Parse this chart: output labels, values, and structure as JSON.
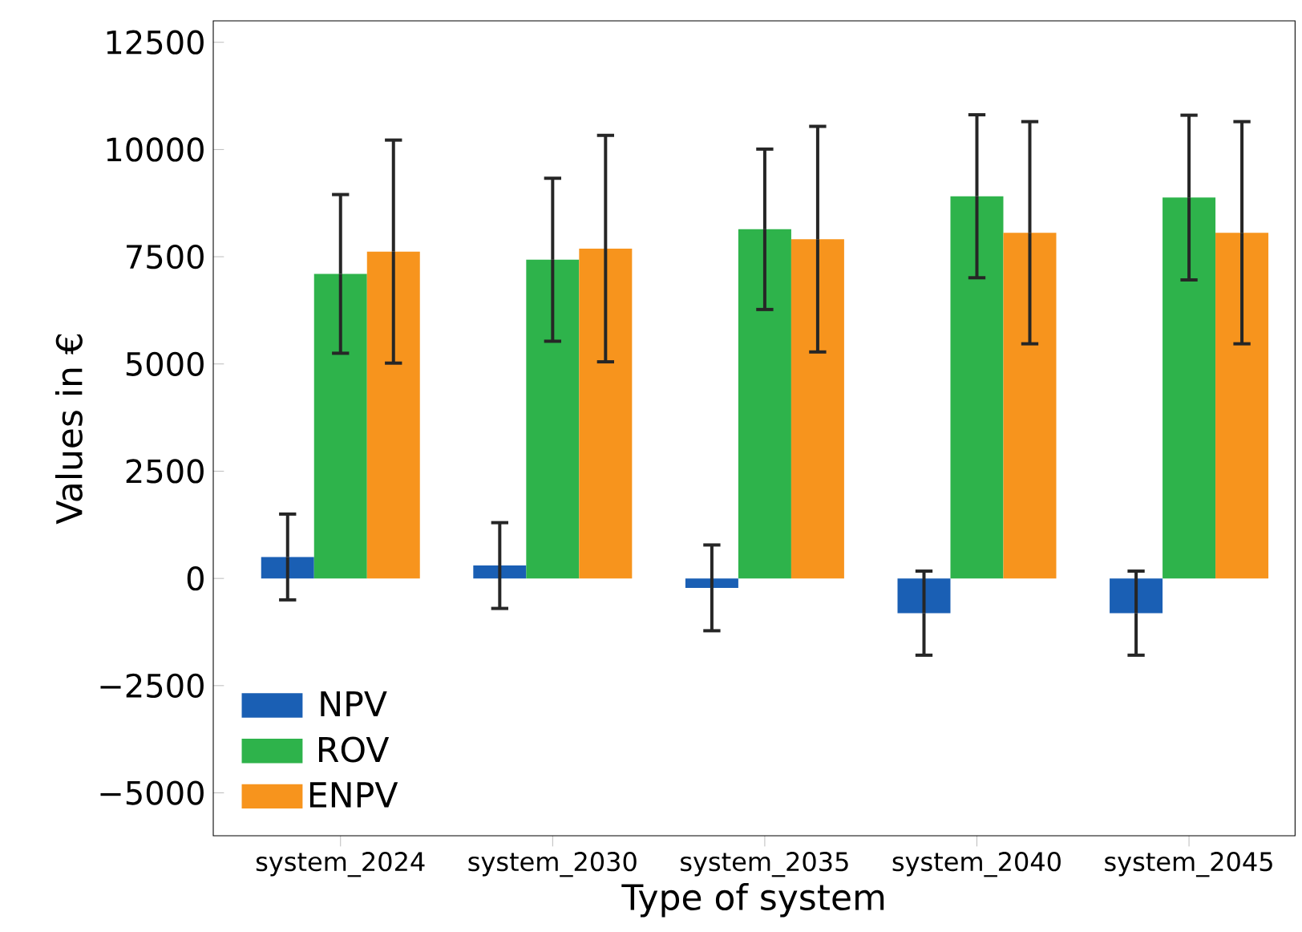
{
  "chart_data": {
    "type": "bar",
    "xlabel": "Type of system",
    "ylabel": "Values in €",
    "categories": [
      "system_2024",
      "system_2030",
      "system_2035",
      "system_2040",
      "system_2045"
    ],
    "series": [
      {
        "name": "NPV",
        "color": "#1a5fb4",
        "values": [
          500,
          300,
          -220,
          -810,
          -810
        ],
        "errors": [
          1000,
          1000,
          1000,
          980,
          980
        ]
      },
      {
        "name": "ROV",
        "color": "#2eb34b",
        "values": [
          7100,
          7430,
          8140,
          8910,
          8880
        ],
        "errors": [
          1850,
          1900,
          1870,
          1900,
          1920
        ]
      },
      {
        "name": "ENPV",
        "color": "#f7941d",
        "values": [
          7620,
          7690,
          7910,
          8060,
          8060
        ],
        "errors": [
          2600,
          2640,
          2630,
          2590,
          2590
        ]
      }
    ],
    "ylim": [
      -6000,
      13000
    ],
    "yticks": [
      {
        "value": -5000,
        "label": "−5000"
      },
      {
        "value": -2500,
        "label": "−2500"
      },
      0,
      2500,
      5000,
      7500,
      10000,
      12500
    ],
    "grid": false,
    "legend": "bottom left"
  }
}
